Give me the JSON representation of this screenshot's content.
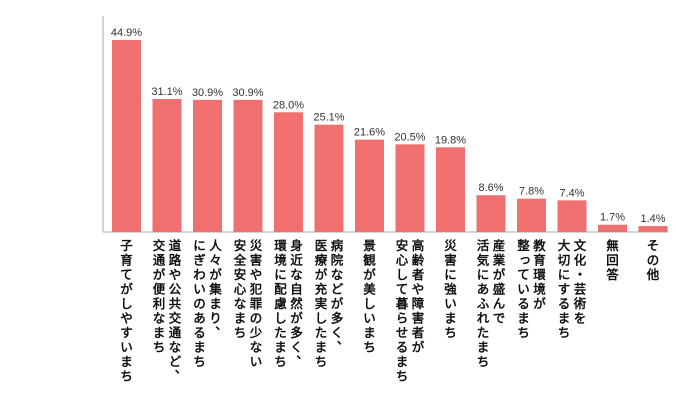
{
  "chart_data": {
    "type": "bar",
    "categories": [
      [
        "子育てがしやすいまち"
      ],
      [
        "道路や公共交通など、",
        "交通が便利なまち"
      ],
      [
        "人々が集まり、",
        "にぎわいのあるまち"
      ],
      [
        "災害や犯罪の少ない",
        "安全安心なまち"
      ],
      [
        "身近な自然が多く、",
        "環境に配慮したまち"
      ],
      [
        "病院などが多く、",
        "医療が充実したまち"
      ],
      [
        "景観が美しいまち"
      ],
      [
        "高齢者や障害者が",
        "安心して暮らせるまち"
      ],
      [
        "災害に強いまち"
      ],
      [
        "産業が盛んで",
        "活気にあふれたまち"
      ],
      [
        "教育環境が",
        "整っているまち"
      ],
      [
        "文化・芸術を",
        "大切にするまち"
      ],
      [
        "無回答"
      ],
      [
        "その他"
      ]
    ],
    "values": [
      44.9,
      31.1,
      30.9,
      30.9,
      28.0,
      25.1,
      21.6,
      20.5,
      19.8,
      8.6,
      7.8,
      7.4,
      1.7,
      1.4
    ],
    "value_labels": [
      "44.9%",
      "31.1%",
      "30.9%",
      "30.9%",
      "28.0%",
      "25.1%",
      "21.6%",
      "20.5%",
      "19.8%",
      "8.6%",
      "7.8%",
      "7.4%",
      "1.7%",
      "1.4%"
    ],
    "title": "",
    "xlabel": "",
    "ylabel": "",
    "ylim": [
      0,
      48
    ],
    "grid": false,
    "legend": "none",
    "colors": {
      "bar": "#f07070",
      "axis": "#aaaaaa",
      "label": "#111111",
      "value": "#333333"
    }
  }
}
